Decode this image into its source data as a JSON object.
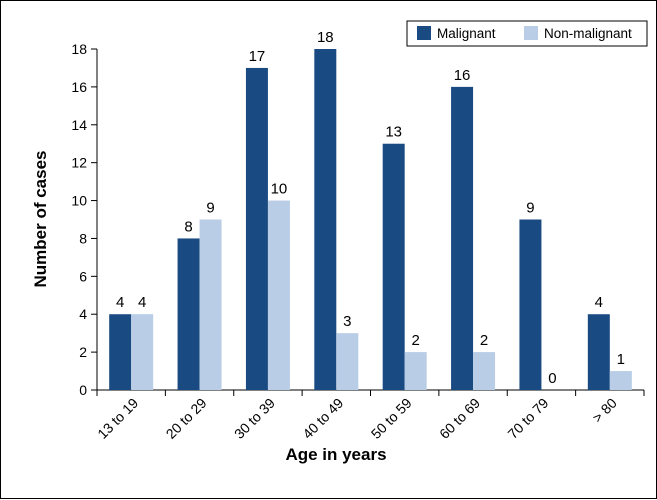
{
  "chart_data": {
    "type": "bar",
    "title": "",
    "xlabel": "Age in years",
    "ylabel": "Number of cases",
    "ylim": [
      0,
      18
    ],
    "yticks": [
      0,
      2,
      4,
      6,
      8,
      10,
      12,
      14,
      16,
      18
    ],
    "categories": [
      "13 to 19",
      "20 to 29",
      "30 to 39",
      "40 to 49",
      "50 to 59",
      "60 to 69",
      "70 to 79",
      "> 80"
    ],
    "series": [
      {
        "name": "Malignant",
        "color": "#1a4a82",
        "values": [
          4,
          8,
          17,
          18,
          13,
          16,
          9,
          4
        ]
      },
      {
        "name": "Non-malignant",
        "color": "#b9cde6",
        "values": [
          4,
          9,
          10,
          3,
          2,
          2,
          0,
          1
        ]
      }
    ],
    "legend_position": "top-right",
    "grid": false
  }
}
